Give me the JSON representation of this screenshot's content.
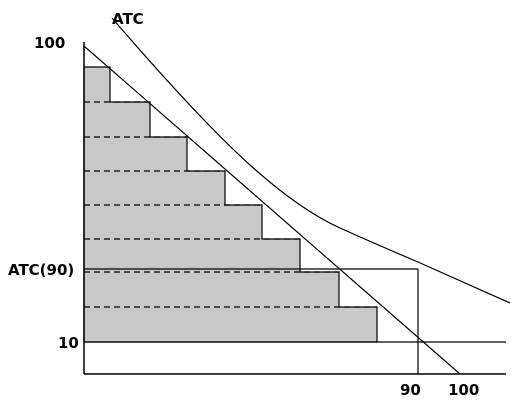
{
  "labels": {
    "atc_curve": "ATC",
    "y_top": "100",
    "y_atc90": "ATC(90)",
    "y_10": "10",
    "x_90": "90",
    "x_100": "100"
  },
  "colors": {
    "fill": "#c8c8c8",
    "stroke": "#000000",
    "background": "#ffffff"
  }
}
